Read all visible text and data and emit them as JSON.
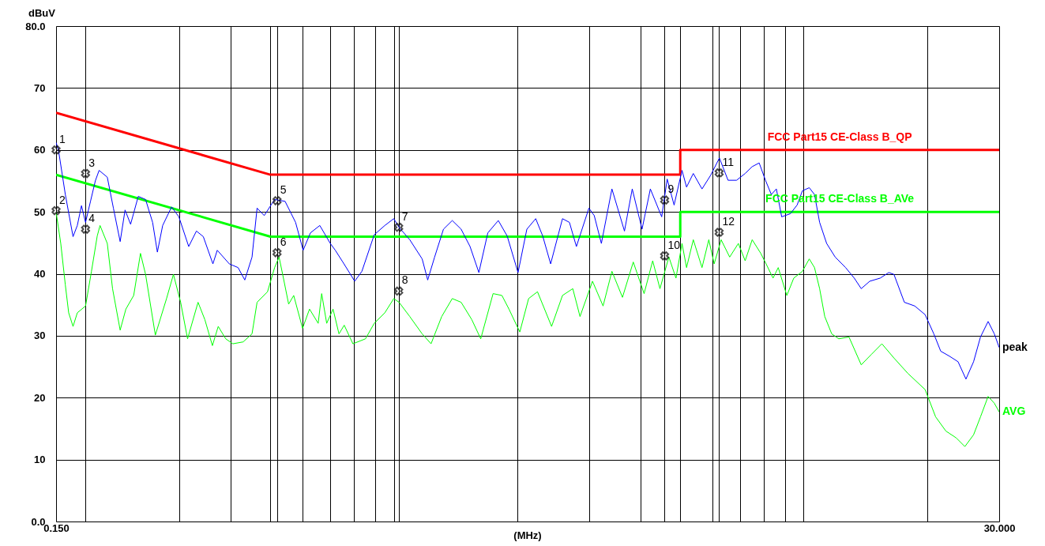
{
  "chart_data": {
    "type": "line",
    "xlabel": "(MHz)",
    "ylabel": "dBuV",
    "log": "x",
    "grid": true,
    "legend": false,
    "line_style": "solid",
    "marker": "none",
    "xlim": [
      0.15,
      30
    ],
    "ylim": [
      0,
      80
    ],
    "xticks": [
      {
        "value": 0.15,
        "label": "0.150"
      },
      {
        "value": 0.177,
        "label": null
      },
      {
        "value": 0.3,
        "label": null
      },
      {
        "value": 0.4,
        "label": null
      },
      {
        "value": 0.5,
        "label": null
      },
      {
        "value": 0.519,
        "label": null
      },
      {
        "value": 0.6,
        "label": null
      },
      {
        "value": 0.7,
        "label": null
      },
      {
        "value": 0.8,
        "label": null
      },
      {
        "value": 0.9,
        "label": null
      },
      {
        "value": 1,
        "label": null
      },
      {
        "value": 1.028,
        "label": null
      },
      {
        "value": 2,
        "label": null
      },
      {
        "value": 3,
        "label": null
      },
      {
        "value": 4,
        "label": null
      },
      {
        "value": 4.58,
        "label": null
      },
      {
        "value": 5,
        "label": null
      },
      {
        "value": 6,
        "label": null
      },
      {
        "value": 6.22,
        "label": null
      },
      {
        "value": 7,
        "label": null
      },
      {
        "value": 8,
        "label": null
      },
      {
        "value": 9,
        "label": null
      },
      {
        "value": 10,
        "label": null
      },
      {
        "value": 20,
        "label": null
      },
      {
        "value": 30,
        "label": "30.000"
      }
    ],
    "yticks": [
      {
        "value": 0,
        "label": "0.0"
      },
      10,
      20,
      30,
      40,
      50,
      60,
      70,
      {
        "value": 80,
        "label": "80.0"
      }
    ],
    "series": [
      {
        "name": "FCC Part15 CE-Class B_QP",
        "color": "#ff0000",
        "x": [
          0.15,
          0.5,
          5,
          5,
          30
        ],
        "values": [
          66,
          56,
          56,
          60,
          60
        ]
      },
      {
        "name": "FCC Part15 CE-Class B_AVe",
        "color": "#00ff00",
        "x": [
          0.15,
          0.5,
          5,
          5,
          30
        ],
        "values": [
          56,
          46,
          46,
          50,
          50
        ]
      },
      {
        "name": "peak",
        "color": "#0000ff",
        "x": [
          0.15,
          0.152,
          0.158,
          0.165,
          0.169,
          0.173,
          0.177,
          0.182,
          0.187,
          0.191,
          0.2,
          0.207,
          0.215,
          0.221,
          0.228,
          0.238,
          0.248,
          0.258,
          0.265,
          0.273,
          0.287,
          0.299,
          0.316,
          0.33,
          0.343,
          0.362,
          0.371,
          0.397,
          0.417,
          0.433,
          0.451,
          0.464,
          0.483,
          0.512,
          0.543,
          0.576,
          0.601,
          0.626,
          0.66,
          0.7,
          0.72,
          0.756,
          0.803,
          0.836,
          0.896,
          0.951,
          1.0,
          1.03,
          1.094,
          1.173,
          1.21,
          1.258,
          1.322,
          1.389,
          1.46,
          1.535,
          1.613,
          1.696,
          1.799,
          1.891,
          2.01,
          2.112,
          2.22,
          2.309,
          2.414,
          2.58,
          2.683,
          2.79,
          2.993,
          3.084,
          3.21,
          3.406,
          3.655,
          3.818,
          4.034,
          4.227,
          4.505,
          4.646,
          4.83,
          5.05,
          5.18,
          5.38,
          5.65,
          5.93,
          6.23,
          6.54,
          6.86,
          7.2,
          7.49,
          7.79,
          8.07,
          8.34,
          8.58,
          8.84,
          9.28,
          9.64,
          9.93,
          10.32,
          10.63,
          10.94,
          11.38,
          11.94,
          12.66,
          13.29,
          13.82,
          14.5,
          15.37,
          16.14,
          16.61,
          17.61,
          18.67,
          19.79,
          20.78,
          21.6,
          22.68,
          23.81,
          24.89,
          25.98,
          27.01,
          28.19,
          29.19,
          30
        ],
        "values": [
          61.2,
          60,
          52.8,
          46,
          47.8,
          51,
          48.3,
          51.7,
          55,
          56.7,
          55.6,
          50.6,
          45.2,
          50.3,
          48,
          52.5,
          52,
          48.3,
          43.5,
          47.8,
          50.8,
          49.2,
          44.4,
          46.9,
          46,
          41.6,
          43.8,
          41.6,
          41,
          39,
          42.7,
          50.6,
          49.4,
          52,
          51.7,
          48.3,
          43.8,
          46.6,
          47.8,
          44.9,
          43.8,
          41.6,
          38.8,
          40.4,
          46.3,
          47.8,
          48.9,
          47.5,
          45.5,
          42.4,
          39,
          42.7,
          47.2,
          48.6,
          47.2,
          44.4,
          40.2,
          46.6,
          48.6,
          46.1,
          40.2,
          47.2,
          48.9,
          46.1,
          41.6,
          48.9,
          48.3,
          44.4,
          50.6,
          49.4,
          44.9,
          53.7,
          46.9,
          53.7,
          47.2,
          53.7,
          49.2,
          55.3,
          51.1,
          56.7,
          54,
          56.2,
          53.7,
          55.9,
          58.7,
          55.1,
          55.1,
          56.2,
          57.3,
          57.9,
          55.1,
          52.8,
          53.7,
          49.2,
          49.7,
          51.1,
          53.4,
          53.9,
          52.8,
          48.3,
          44.9,
          42.7,
          41,
          39.3,
          37.6,
          38.8,
          39.3,
          40.2,
          39.9,
          35.4,
          34.8,
          33.4,
          30.3,
          27.5,
          26.7,
          25.8,
          23,
          25.8,
          29.8,
          32.3,
          30.3,
          28.1
        ]
      },
      {
        "name": "AVG",
        "color": "#00ff00",
        "x": [
          0.15,
          0.154,
          0.158,
          0.161,
          0.165,
          0.169,
          0.177,
          0.183,
          0.189,
          0.192,
          0.2,
          0.206,
          0.215,
          0.222,
          0.232,
          0.241,
          0.248,
          0.262,
          0.279,
          0.29,
          0.302,
          0.314,
          0.333,
          0.346,
          0.361,
          0.373,
          0.389,
          0.405,
          0.429,
          0.451,
          0.464,
          0.492,
          0.512,
          0.525,
          0.538,
          0.554,
          0.57,
          0.599,
          0.623,
          0.654,
          0.667,
          0.686,
          0.711,
          0.735,
          0.757,
          0.795,
          0.853,
          0.896,
          0.951,
          1.0,
          1.03,
          1.094,
          1.173,
          1.233,
          1.309,
          1.389,
          1.46,
          1.55,
          1.63,
          1.747,
          1.836,
          1.91,
          2.03,
          2.133,
          2.242,
          2.427,
          2.58,
          2.734,
          2.847,
          3.054,
          3.241,
          3.406,
          3.614,
          3.84,
          4.081,
          4.283,
          4.461,
          4.691,
          4.881,
          5.05,
          5.18,
          5.38,
          5.65,
          5.87,
          6.05,
          6.29,
          6.6,
          6.93,
          7.2,
          7.49,
          7.86,
          8.1,
          8.42,
          8.67,
          9.1,
          9.46,
          9.93,
          10.32,
          10.63,
          10.94,
          11.26,
          11.71,
          12.18,
          12.9,
          13.82,
          14.64,
          15.52,
          16.61,
          17.97,
          19.79,
          20.99,
          22.24,
          23.57,
          24.74,
          25.98,
          27.01,
          28.19,
          29.19,
          30
        ],
        "values": [
          50,
          44.9,
          38.2,
          33.7,
          31.5,
          33.7,
          34.8,
          40.4,
          46.1,
          47.8,
          44.9,
          37.6,
          30.9,
          34.3,
          36.5,
          43.3,
          39.9,
          30.1,
          36,
          39.9,
          35.4,
          29.5,
          35.4,
          32.6,
          28.4,
          31.5,
          29.5,
          28.7,
          29,
          30.3,
          35.4,
          37.1,
          41,
          42.7,
          39.3,
          35.1,
          36.5,
          31.2,
          34.3,
          32,
          36.8,
          32,
          34.3,
          30.3,
          31.7,
          28.7,
          29.5,
          32,
          33.7,
          36,
          35.4,
          33.1,
          30.3,
          28.7,
          33.1,
          36,
          35.4,
          32.6,
          29.5,
          36.8,
          36.5,
          34.3,
          30.6,
          36,
          37.1,
          31.5,
          36.5,
          37.6,
          33.1,
          38.8,
          34.8,
          40.4,
          36.2,
          41.9,
          36.8,
          42.1,
          37.6,
          42.7,
          39.3,
          44.9,
          41,
          45.5,
          41,
          45.5,
          41.6,
          45.5,
          42.7,
          44.9,
          42.1,
          45.5,
          43.3,
          41.6,
          39.3,
          41,
          36.5,
          39.3,
          40.4,
          42.4,
          41,
          37.6,
          33.1,
          30.3,
          29.5,
          29.8,
          25.3,
          27,
          28.7,
          26.4,
          23.9,
          21.3,
          16.9,
          14.6,
          13.5,
          12.1,
          14,
          16.9,
          20.2,
          19.1,
          17.7
        ]
      },
      {
        "type": "scatter",
        "color": "#000000",
        "marker": "cross",
        "x": [
          0.15,
          0.15,
          0.177,
          0.177,
          0.519,
          0.519,
          1.028,
          1.028,
          4.58,
          4.58,
          6.22,
          6.22
        ],
        "values": [
          60,
          50.2,
          56.2,
          47.2,
          51.8,
          43.4,
          47.5,
          37.2,
          51.9,
          42.9,
          56.3,
          46.7
        ]
      }
    ],
    "annotations": [
      {
        "text": "1",
        "x": 0.15,
        "y": 60
      },
      {
        "text": "2",
        "x": 0.15,
        "y": 50.2
      },
      {
        "text": "3",
        "x": 0.177,
        "y": 56.2
      },
      {
        "text": "4",
        "x": 0.177,
        "y": 47.2
      },
      {
        "text": "5",
        "x": 0.519,
        "y": 51.8
      },
      {
        "text": "6",
        "x": 0.519,
        "y": 43.4
      },
      {
        "text": "7",
        "x": 1.028,
        "y": 47.5
      },
      {
        "text": "8",
        "x": 1.028,
        "y": 37.2
      },
      {
        "text": "9",
        "x": 4.58,
        "y": 51.9
      },
      {
        "text": "10",
        "x": 4.58,
        "y": 42.9
      },
      {
        "text": "11",
        "x": 6.22,
        "y": 56.3
      },
      {
        "text": "12",
        "x": 6.22,
        "y": 46.7
      }
    ]
  }
}
